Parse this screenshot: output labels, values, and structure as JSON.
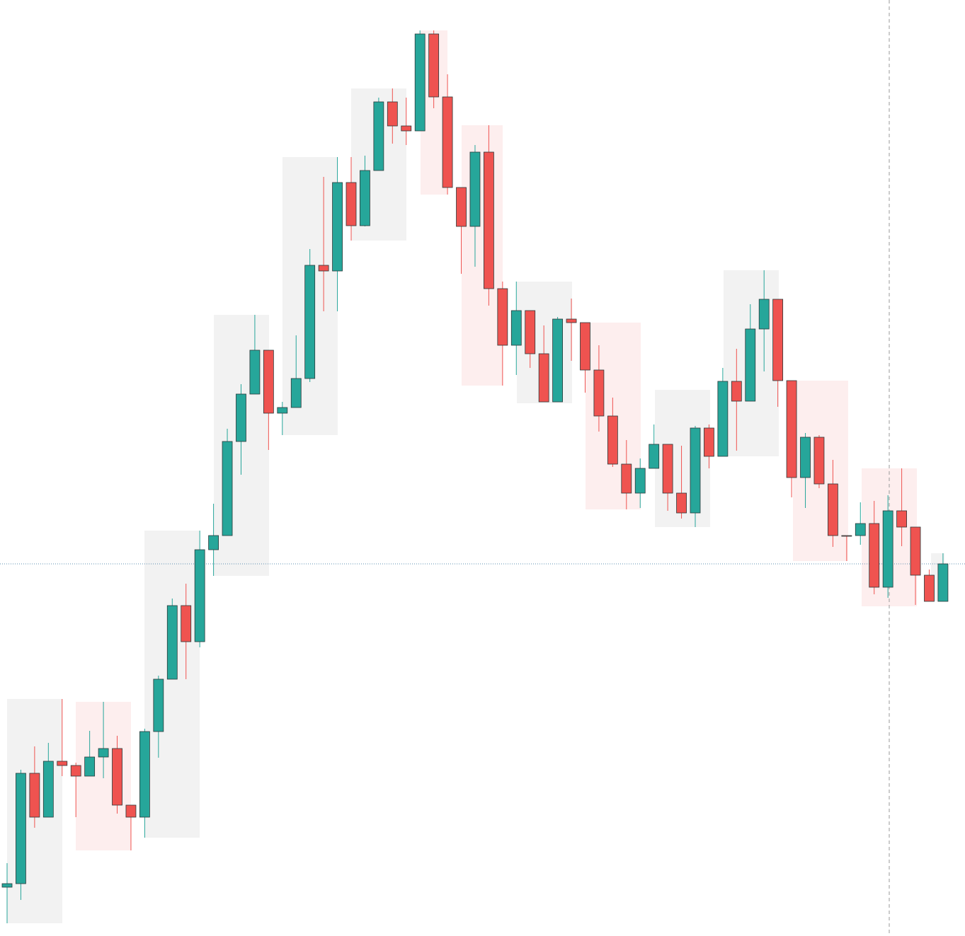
{
  "chart_data": {
    "type": "candlestick",
    "up_color": "#26a69a",
    "down_color": "#ef5350",
    "ylim": [
      0,
      1323
    ],
    "open": [
      69,
      74,
      230,
      168,
      247,
      241,
      226,
      253,
      265,
      185,
      168,
      289,
      363,
      467,
      416,
      546,
      566,
      699,
      766,
      828,
      739,
      747,
      788,
      948,
      940,
      1065,
      1004,
      1082,
      1179,
      1145,
      1138,
      1275,
      1186,
      1058,
      1003,
      1108,
      915,
      835,
      884,
      823,
      755,
      872,
      867,
      800,
      735,
      667,
      626,
      661,
      695,
      626,
      598,
      718,
      678,
      784,
      756,
      858,
      900,
      785,
      648,
      705,
      639,
      566,
      566,
      583,
      493,
      601,
      578,
      510,
      473
    ],
    "high": [
      103,
      235,
      268,
      273,
      335,
      245,
      290,
      331,
      283,
      185,
      293,
      368,
      477,
      498,
      573,
      611,
      717,
      780,
      878,
      828,
      755,
      849,
      971,
      1073,
      1101,
      1101,
      1103,
      1185,
      1198,
      1185,
      1280,
      1280,
      1218,
      1058,
      1118,
      1146,
      925,
      925,
      884,
      863,
      875,
      901,
      867,
      835,
      761,
      701,
      675,
      723,
      695,
      693,
      721,
      723,
      803,
      830,
      893,
      941,
      900,
      785,
      711,
      708,
      673,
      566,
      613,
      615,
      623,
      661,
      578,
      518,
      541
    ],
    "low": [
      18,
      51,
      153,
      168,
      226,
      168,
      226,
      223,
      173,
      121,
      139,
      252,
      363,
      363,
      408,
      509,
      566,
      652,
      766,
      687,
      708,
      747,
      783,
      883,
      883,
      983,
      1003,
      1082,
      1120,
      1118,
      1138,
      1170,
      1048,
      936,
      946,
      891,
      778,
      793,
      803,
      755,
      755,
      813,
      768,
      713,
      663,
      603,
      605,
      661,
      601,
      590,
      578,
      661,
      678,
      686,
      756,
      798,
      748,
      620,
      605,
      633,
      550,
      530,
      553,
      483,
      478,
      551,
      468,
      473,
      473
    ],
    "close": [
      74,
      230,
      168,
      247,
      241,
      226,
      253,
      265,
      185,
      168,
      289,
      363,
      467,
      416,
      546,
      566,
      699,
      766,
      828,
      739,
      747,
      788,
      948,
      940,
      1065,
      1004,
      1082,
      1179,
      1145,
      1138,
      1275,
      1186,
      1058,
      1003,
      1108,
      915,
      835,
      884,
      823,
      755,
      872,
      867,
      800,
      735,
      667,
      626,
      661,
      695,
      626,
      598,
      718,
      678,
      784,
      756,
      858,
      900,
      785,
      648,
      705,
      639,
      566,
      565,
      583,
      493,
      601,
      578,
      510,
      473,
      526
    ]
  }
}
